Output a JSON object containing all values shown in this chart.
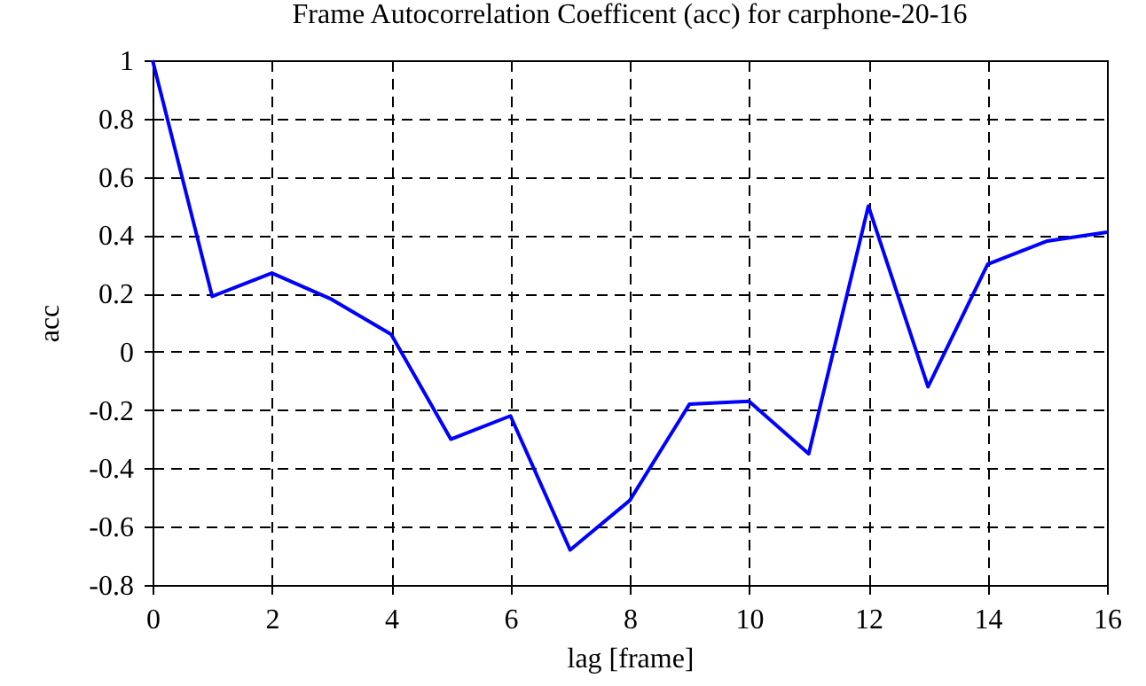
{
  "chart_data": {
    "type": "line",
    "title": "Frame Autocorrelation Coefficent (acc) for carphone-20-16",
    "xlabel": "lag [frame]",
    "ylabel": "acc",
    "x": [
      0,
      1,
      2,
      3,
      4,
      5,
      6,
      7,
      8,
      9,
      10,
      11,
      12,
      13,
      14,
      15,
      16
    ],
    "series": [
      {
        "color": "#0000ff",
        "values": [
          1.0,
          0.19,
          0.27,
          0.18,
          0.06,
          -0.3,
          -0.22,
          -0.68,
          -0.51,
          -0.18,
          -0.17,
          -0.35,
          0.5,
          -0.12,
          0.3,
          0.38,
          0.41
        ]
      }
    ],
    "xlim": [
      0,
      16
    ],
    "xticks": [
      0,
      2,
      4,
      6,
      8,
      10,
      12,
      14,
      16
    ],
    "ylim": [
      -0.8,
      1
    ],
    "yticks": [
      -0.8,
      -0.6,
      -0.4,
      -0.2,
      0,
      0.2,
      0.4,
      0.6,
      0.8,
      1
    ],
    "grid": true,
    "line_style": "solid"
  }
}
